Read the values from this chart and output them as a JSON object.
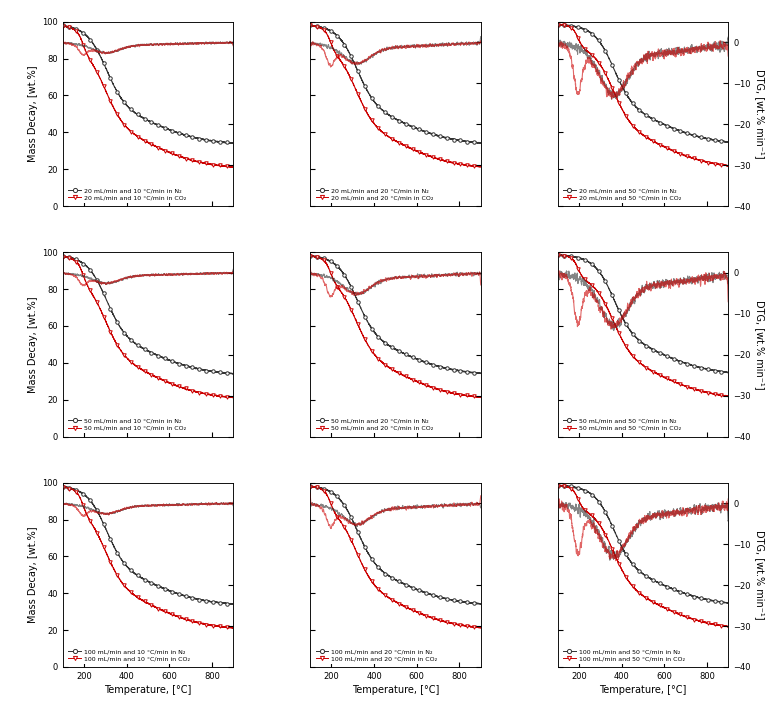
{
  "flow_rates": [
    20,
    50,
    100
  ],
  "heating_rates": [
    10,
    20,
    50
  ],
  "tg_ylim": [
    0,
    100
  ],
  "dtg_ylim": [
    -40,
    5
  ],
  "temp_xlim": [
    100,
    900
  ],
  "xlabel": "Temperature, [°C]",
  "ylabel_left": "Mass Decay, [wt.%]",
  "ylabel_right": "DTG, [wt.% min⁻¹]",
  "n2_color": "#333333",
  "co2_color": "#cc0000",
  "background_color": "#ffffff"
}
